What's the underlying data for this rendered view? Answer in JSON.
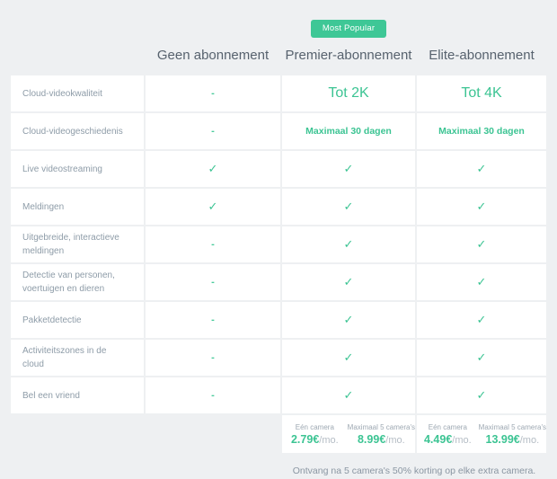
{
  "badge": {
    "label": "Most Popular"
  },
  "header": {
    "columns": [
      "Geen abonnement",
      "Premier-abonnement",
      "Elite-abonnement"
    ]
  },
  "table": {
    "rows": [
      {
        "feature": "Cloud-videokwaliteit",
        "geen": "-",
        "premier": "Tot 2K",
        "elite": "Tot 4K"
      },
      {
        "feature": "Cloud-videogeschiedenis",
        "geen": "-",
        "premier": "Maximaal 30 dagen",
        "elite": "Maximaal 30 dagen"
      },
      {
        "feature": "Live videostreaming",
        "geen": "✓",
        "premier": "✓",
        "elite": "✓"
      },
      {
        "feature": "Meldingen",
        "geen": "✓",
        "premier": "✓",
        "elite": "✓"
      },
      {
        "feature": "Uitgebreide, interactieve meldingen",
        "geen": "-",
        "premier": "✓",
        "elite": "✓"
      },
      {
        "feature": "Detectie van personen, voertuigen en dieren",
        "geen": "-",
        "premier": "✓",
        "elite": "✓"
      },
      {
        "feature": "Pakketdetectie",
        "geen": "-",
        "premier": "✓",
        "elite": "✓"
      },
      {
        "feature": "Activiteitszones in de cloud",
        "geen": "-",
        "premier": "✓",
        "elite": "✓"
      },
      {
        "feature": "Bel een vriend",
        "geen": "-",
        "premier": "✓",
        "elite": "✓"
      }
    ]
  },
  "pricing": {
    "premier": {
      "options": [
        {
          "label": "Eén camera",
          "price": "2.79€",
          "suffix": "/mo."
        },
        {
          "label": "Maximaal 5 camera's",
          "price": "8.99€",
          "suffix": "/mo."
        }
      ]
    },
    "elite": {
      "options": [
        {
          "label": "Eén camera",
          "price": "4.49€",
          "suffix": "/mo."
        },
        {
          "label": "Maximaal 5 camera's",
          "price": "13.99€",
          "suffix": "/mo."
        }
      ]
    }
  },
  "footer": {
    "note": "Ontvang na 5 camera's 50% korting op elke extra camera."
  },
  "colors": {
    "accent_green": "#3cc493",
    "badge_green": "#3ec796",
    "header_text": "#57626e",
    "feature_text": "#8e9ca8",
    "page_bg": "#eef0f2"
  }
}
